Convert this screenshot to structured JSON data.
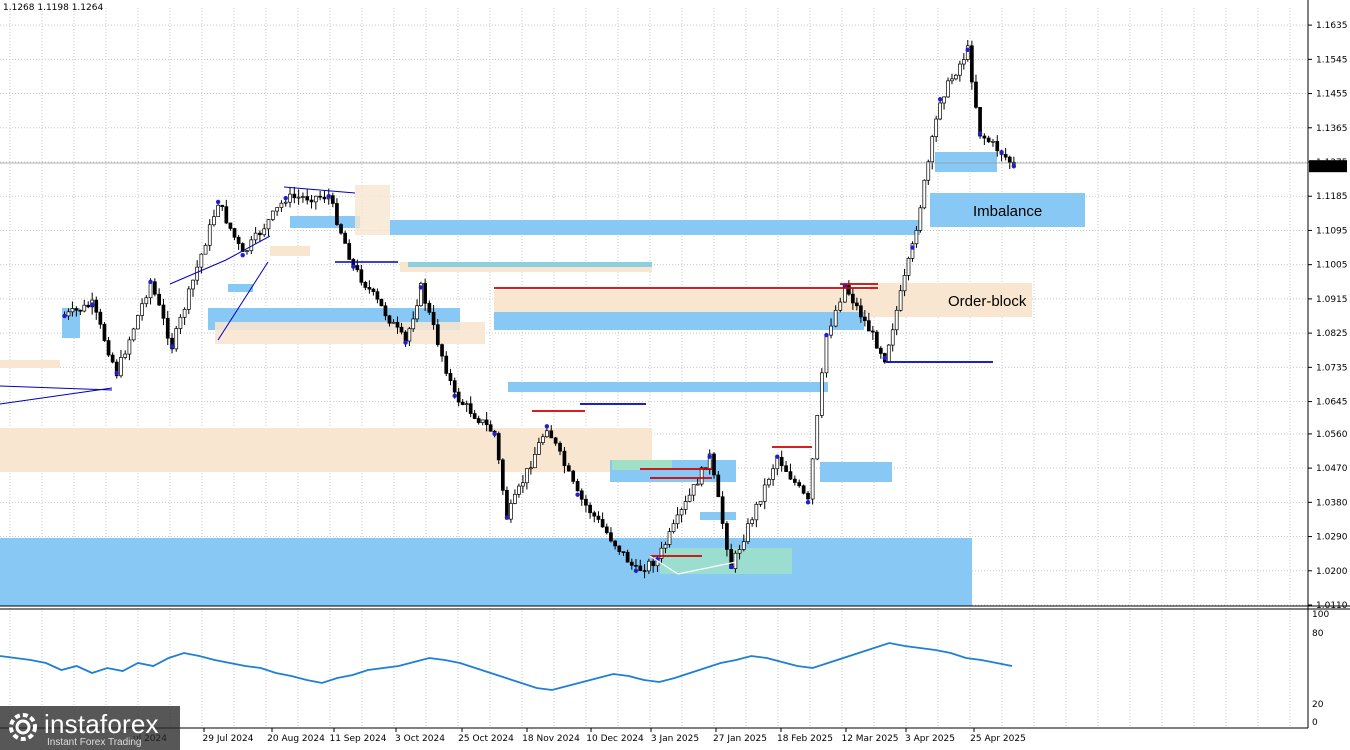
{
  "header": {
    "ohlc": "1.1268 1.1198 1.1264"
  },
  "price_axis": {
    "ticks": [
      "1.1635",
      "1.1545",
      "1.1455",
      "1.1365",
      "1.1275",
      "1.1185",
      "1.1095",
      "1.1005",
      "1.0915",
      "1.0825",
      "1.0735",
      "1.0645",
      "1.0560",
      "1.0470",
      "1.0380",
      "1.0290",
      "1.0200",
      "1.0110"
    ],
    "current_price": "1.1264"
  },
  "indicator_axis": {
    "ticks": [
      "100",
      "80",
      "20",
      "0"
    ]
  },
  "time_axis": {
    "labels": [
      "ul 2024",
      "29 Jul 2024",
      "20 Aug 2024",
      "11 Sep 2024",
      "3 Oct 2024",
      "25 Oct 2024",
      "18 Nov 2024",
      "10 Dec 2024",
      "3 Jan 2025",
      "27 Jan 2025",
      "18 Feb 2025",
      "12 Mar 2025",
      "3 Apr 2025",
      "25 Apr 2025"
    ]
  },
  "annotations": {
    "imbalance": "Imbalance",
    "order_block": "Order-block"
  },
  "brand": {
    "name": "instaforex",
    "tagline": "Instant Forex Trading"
  },
  "colors": {
    "imbalance_zone": "#87c8f5",
    "order_block_zone": "#f8e6d0",
    "green_zone": "#9fe0c7",
    "bull": "#ffffff",
    "bear": "#000000",
    "swing_point": "#1f1fd0",
    "level_red": "#d00000",
    "level_blue": "#0000c0",
    "oscillator": "#1e7fd6"
  },
  "chart_data": {
    "type": "candlestick",
    "symbol_ohlc_last": {
      "open": 1.1268,
      "high": 1.1268,
      "low": 1.1198,
      "close": 1.1264
    },
    "ylim": [
      1.011,
      1.168
    ],
    "path_points": [
      {
        "date": "2024-07-01",
        "price": 1.087
      },
      {
        "date": "2024-07-10",
        "price": 1.09
      },
      {
        "date": "2024-07-18",
        "price": 1.072
      },
      {
        "date": "2024-07-29",
        "price": 1.096
      },
      {
        "date": "2024-08-05",
        "price": 1.079
      },
      {
        "date": "2024-08-20",
        "price": 1.117
      },
      {
        "date": "2024-08-28",
        "price": 1.103
      },
      {
        "date": "2024-09-11",
        "price": 1.118
      },
      {
        "date": "2024-09-25",
        "price": 1.1185
      },
      {
        "date": "2024-10-03",
        "price": 1.1
      },
      {
        "date": "2024-10-20",
        "price": 1.08
      },
      {
        "date": "2024-10-25",
        "price": 1.0945
      },
      {
        "date": "2024-11-05",
        "price": 1.066
      },
      {
        "date": "2024-11-18",
        "price": 1.056
      },
      {
        "date": "2024-11-22",
        "price": 1.034
      },
      {
        "date": "2024-12-05",
        "price": 1.058
      },
      {
        "date": "2024-12-15",
        "price": 1.04
      },
      {
        "date": "2025-01-03",
        "price": 1.02
      },
      {
        "date": "2025-01-10",
        "price": 1.023
      },
      {
        "date": "2025-01-27",
        "price": 1.05
      },
      {
        "date": "2025-02-03",
        "price": 1.021
      },
      {
        "date": "2025-02-18",
        "price": 1.05
      },
      {
        "date": "2025-02-28",
        "price": 1.038
      },
      {
        "date": "2025-03-06",
        "price": 1.082
      },
      {
        "date": "2025-03-12",
        "price": 1.095
      },
      {
        "date": "2025-03-25",
        "price": 1.076
      },
      {
        "date": "2025-04-03",
        "price": 1.105
      },
      {
        "date": "2025-04-12",
        "price": 1.144
      },
      {
        "date": "2025-04-21",
        "price": 1.157
      },
      {
        "date": "2025-04-25",
        "price": 1.135
      },
      {
        "date": "2025-05-02",
        "price": 1.13
      },
      {
        "date": "2025-05-06",
        "price": 1.1264
      }
    ],
    "oscillator": {
      "ylim": [
        0,
        100
      ],
      "values": [
        62,
        60,
        58,
        55,
        48,
        52,
        45,
        50,
        47,
        55,
        52,
        60,
        65,
        62,
        58,
        55,
        52,
        50,
        45,
        42,
        38,
        35,
        40,
        43,
        48,
        50,
        52,
        56,
        60,
        58,
        55,
        50,
        45,
        40,
        35,
        30,
        28,
        32,
        36,
        40,
        44,
        42,
        38,
        36,
        40,
        45,
        50,
        55,
        58,
        62,
        60,
        56,
        52,
        50,
        55,
        60,
        65,
        70,
        75,
        72,
        70,
        68,
        65,
        60,
        58,
        55,
        52
      ]
    }
  }
}
